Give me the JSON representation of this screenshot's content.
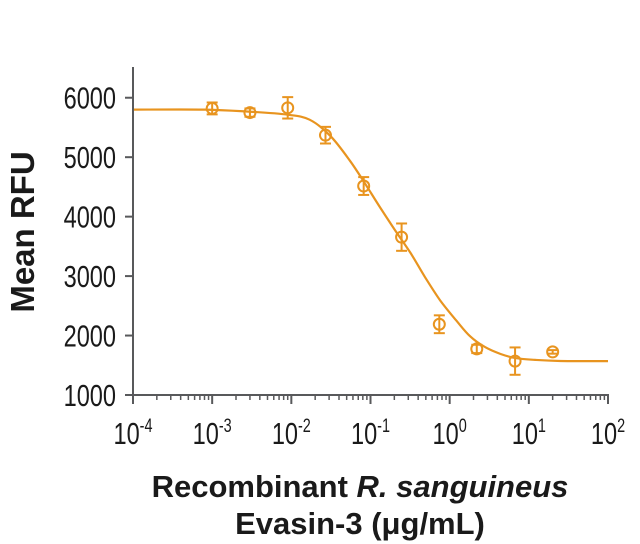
{
  "figure": {
    "kind": "dose-response inhibition curve",
    "background": "#ffffff",
    "accent_color": "#E8941F",
    "axis_color": "#58595B",
    "text_color": "#1A1A1A"
  },
  "chart_data": {
    "type": "scatter",
    "x_scale": "log10",
    "xlim": [
      0.0001,
      100
    ],
    "ylim": [
      1000,
      6500
    ],
    "grid": false,
    "legend": false,
    "ylabel": "Mean RFU",
    "xlabel": {
      "line1_parts": [
        {
          "text": "Recombinant ",
          "italic": false
        },
        {
          "text": "R. sanguineus",
          "italic": true
        }
      ],
      "line2": "Evasin-3 (μg/mL)"
    },
    "y_ticks": [
      1000,
      2000,
      3000,
      4000,
      5000,
      6000
    ],
    "x_tick_base": "10",
    "x_tick_exponents": [
      -4,
      -3,
      -2,
      -1,
      0,
      1,
      2
    ],
    "series": [
      {
        "name": "Recombinant R. sanguineus Evasin-3",
        "marker": "open-circle",
        "error_bars": true,
        "points": [
          {
            "x": 0.001,
            "y": 5820,
            "err": 100
          },
          {
            "x": 0.003,
            "y": 5750,
            "err": 70
          },
          {
            "x": 0.009,
            "y": 5830,
            "err": 180
          },
          {
            "x": 0.027,
            "y": 5370,
            "err": 140
          },
          {
            "x": 0.082,
            "y": 4515,
            "err": 150
          },
          {
            "x": 0.247,
            "y": 3655,
            "err": 230
          },
          {
            "x": 0.74,
            "y": 2190,
            "err": 150
          },
          {
            "x": 2.2,
            "y": 1775,
            "err": 70
          },
          {
            "x": 6.7,
            "y": 1570,
            "err": 230
          },
          {
            "x": 20,
            "y": 1725,
            "err": 30
          }
        ]
      }
    ],
    "fit_curve_points": [
      [
        0.0001,
        5800
      ],
      [
        0.0008,
        5800
      ],
      [
        0.003,
        5765
      ],
      [
        0.009,
        5715
      ],
      [
        0.017,
        5630
      ],
      [
        0.031,
        5360
      ],
      [
        0.055,
        4940
      ],
      [
        0.085,
        4560
      ],
      [
        0.13,
        4170
      ],
      [
        0.2,
        3790
      ],
      [
        0.32,
        3390
      ],
      [
        0.49,
        2980
      ],
      [
        0.76,
        2590
      ],
      [
        1.2,
        2260
      ],
      [
        1.8,
        1990
      ],
      [
        2.8,
        1805
      ],
      [
        4.4,
        1690
      ],
      [
        6.8,
        1620
      ],
      [
        12,
        1590
      ],
      [
        25,
        1572
      ],
      [
        100,
        1570
      ]
    ]
  }
}
